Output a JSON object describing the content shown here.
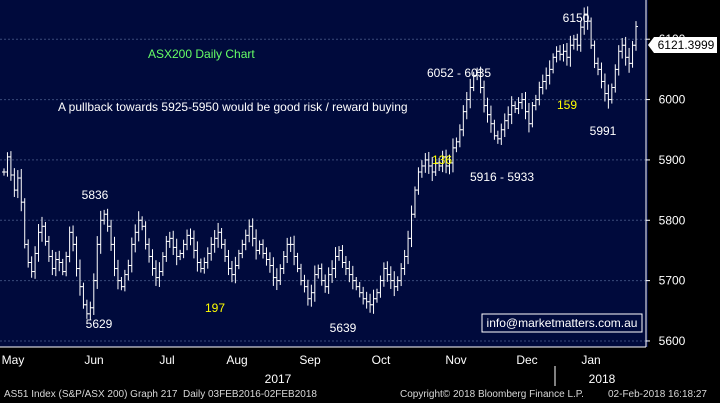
{
  "chart_data": {
    "type": "bar",
    "style": "ohlc",
    "title": "ASX200 Daily Chart",
    "ylim": [
      5590,
      6165
    ],
    "y_ticks": [
      5600,
      5700,
      5800,
      5900,
      6000,
      6100
    ],
    "grid": true,
    "month_labels": [
      "May",
      "Jun",
      "Jul",
      "Aug",
      "Sep",
      "Oct",
      "Nov",
      "Dec",
      "Jan"
    ],
    "year_labels": [
      "2017",
      "2018"
    ],
    "last_price": "6121.3999",
    "annotations": [
      {
        "text": "A pullback towards 5925-5950 would be good risk / reward buying",
        "color": "#ffffff"
      },
      {
        "text": "5836",
        "color": "#ffffff"
      },
      {
        "text": "5629",
        "color": "#ffffff"
      },
      {
        "text": "197",
        "color": "#ffff00"
      },
      {
        "text": "5639",
        "color": "#ffffff"
      },
      {
        "text": "6052 - 6035",
        "color": "#ffffff"
      },
      {
        "text": "136",
        "color": "#ffff00"
      },
      {
        "text": "5916 - 5933",
        "color": "#ffffff"
      },
      {
        "text": "6150",
        "color": "#ffffff"
      },
      {
        "text": "159",
        "color": "#ffff00"
      },
      {
        "text": "5991",
        "color": "#ffffff"
      }
    ],
    "watermark": "info@marketmatters.com.au",
    "close": [
      5880,
      5905,
      5875,
      5850,
      5870,
      5830,
      5760,
      5730,
      5715,
      5745,
      5780,
      5790,
      5765,
      5740,
      5720,
      5735,
      5730,
      5715,
      5740,
      5780,
      5760,
      5720,
      5690,
      5660,
      5645,
      5655,
      5700,
      5760,
      5800,
      5810,
      5790,
      5760,
      5720,
      5700,
      5690,
      5710,
      5725,
      5760,
      5780,
      5800,
      5790,
      5760,
      5740,
      5720,
      5705,
      5715,
      5740,
      5765,
      5770,
      5755,
      5740,
      5745,
      5760,
      5775,
      5770,
      5750,
      5730,
      5720,
      5730,
      5745,
      5760,
      5770,
      5780,
      5760,
      5740,
      5720,
      5710,
      5725,
      5745,
      5760,
      5775,
      5790,
      5770,
      5750,
      5760,
      5745,
      5735,
      5725,
      5705,
      5700,
      5720,
      5740,
      5760,
      5760,
      5740,
      5720,
      5700,
      5690,
      5670,
      5680,
      5710,
      5720,
      5700,
      5690,
      5710,
      5720,
      5740,
      5750,
      5730,
      5720,
      5710,
      5700,
      5690,
      5680,
      5670,
      5665,
      5660,
      5670,
      5680,
      5700,
      5720,
      5710,
      5700,
      5690,
      5700,
      5720,
      5740,
      5770,
      5810,
      5850,
      5880,
      5890,
      5900,
      5890,
      5880,
      5895,
      5890,
      5905,
      5890,
      5895,
      5920,
      5930,
      5950,
      5980,
      6000,
      6020,
      6040,
      6045,
      6020,
      5990,
      5975,
      5960,
      5940,
      5935,
      5950,
      5965,
      5975,
      5990,
      5985,
      5995,
      6000,
      5980,
      5960,
      5990,
      6000,
      6020,
      6030,
      6040,
      6050,
      6070,
      6080,
      6075,
      6080,
      6070,
      6090,
      6100,
      6090,
      6120,
      6140,
      6130,
      6090,
      6060,
      6050,
      6030,
      6010,
      6000,
      6020,
      6050,
      6080,
      6090,
      6070,
      6060,
      6090,
      6121
    ]
  }
}
